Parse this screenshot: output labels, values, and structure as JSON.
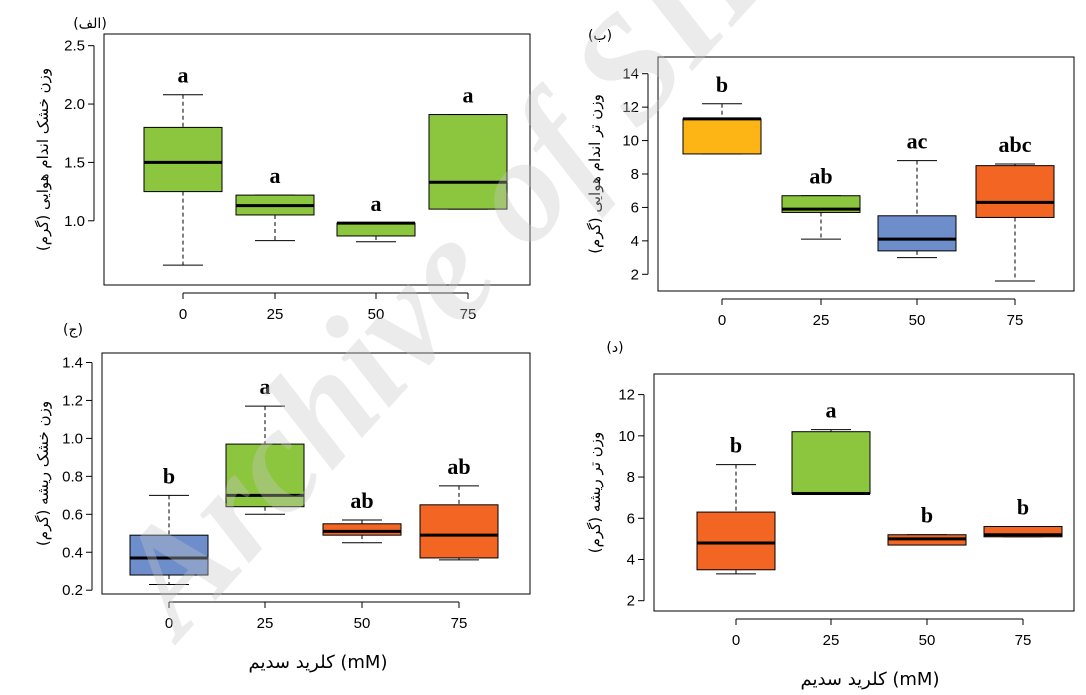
{
  "colors": {
    "green": "#8cc63f",
    "yellow": "#fdb515",
    "blue": "#6d8dcb",
    "orange": "#f26522"
  },
  "watermark": "Archive of SID",
  "chart_data": [
    {
      "type": "box",
      "panel_label": "(الف)",
      "ylabel": "وزن خشک اندام هوایی (گرم)",
      "categories": [
        "0",
        "25",
        "50",
        "75"
      ],
      "ylim": [
        0.45,
        2.6
      ],
      "yticks": [
        1.0,
        1.5,
        2.0,
        2.5
      ],
      "boxes": [
        {
          "min": 0.62,
          "q1": 1.25,
          "median": 1.5,
          "q3": 1.8,
          "max": 2.08,
          "letter": "a",
          "color": "green"
        },
        {
          "min": 0.83,
          "q1": 1.05,
          "median": 1.13,
          "q3": 1.22,
          "max": 1.22,
          "letter": "a",
          "color": "green"
        },
        {
          "min": 0.82,
          "q1": 0.87,
          "median": 0.98,
          "q3": 0.98,
          "max": 0.98,
          "letter": "a",
          "color": "green"
        },
        {
          "min": 1.1,
          "q1": 1.1,
          "median": 1.33,
          "q3": 1.91,
          "max": 1.91,
          "letter": "a",
          "color": "green"
        }
      ]
    },
    {
      "type": "box",
      "panel_label": "(ب)",
      "ylabel": "وزن تر اندام هوایی (گرم)",
      "categories": [
        "0",
        "25",
        "50",
        "75"
      ],
      "ylim": [
        1.0,
        15.0
      ],
      "yticks": [
        2,
        4,
        6,
        8,
        10,
        12,
        14
      ],
      "boxes": [
        {
          "min": 9.2,
          "q1": 9.2,
          "median": 11.3,
          "q3": 11.3,
          "max": 12.2,
          "letter": "b",
          "color": "yellow"
        },
        {
          "min": 4.1,
          "q1": 5.7,
          "median": 5.9,
          "q3": 6.7,
          "max": 6.7,
          "letter": "ab",
          "color": "green"
        },
        {
          "min": 3.0,
          "q1": 3.4,
          "median": 4.1,
          "q3": 5.5,
          "max": 8.8,
          "letter": "ac",
          "color": "blue"
        },
        {
          "min": 1.6,
          "q1": 5.4,
          "median": 6.3,
          "q3": 8.5,
          "max": 8.6,
          "letter": "abc",
          "color": "orange"
        }
      ]
    },
    {
      "type": "box",
      "panel_label": "(ج)",
      "ylabel": "وزن خشک ریشه (گرم)",
      "categories": [
        "0",
        "25",
        "50",
        "75"
      ],
      "ylim": [
        0.18,
        1.45
      ],
      "yticks": [
        0.2,
        0.4,
        0.6,
        0.8,
        1.0,
        1.2,
        1.4
      ],
      "boxes": [
        {
          "min": 0.23,
          "q1": 0.28,
          "median": 0.37,
          "q3": 0.49,
          "max": 0.7,
          "letter": "b",
          "color": "blue"
        },
        {
          "min": 0.6,
          "q1": 0.64,
          "median": 0.7,
          "q3": 0.97,
          "max": 1.17,
          "letter": "a",
          "color": "green"
        },
        {
          "min": 0.45,
          "q1": 0.49,
          "median": 0.51,
          "q3": 0.55,
          "max": 0.57,
          "letter": "ab",
          "color": "orange"
        },
        {
          "min": 0.36,
          "q1": 0.37,
          "median": 0.49,
          "q3": 0.65,
          "max": 0.75,
          "letter": "ab",
          "color": "orange"
        }
      ],
      "xlabel": "کلرید سدیم (mM)"
    },
    {
      "type": "box",
      "panel_label": "(د)",
      "ylabel": "وزن تر ریشه (گرم)",
      "categories": [
        "0",
        "25",
        "50",
        "75"
      ],
      "ylim": [
        1.5,
        13.0
      ],
      "yticks": [
        2,
        4,
        6,
        8,
        10,
        12
      ],
      "boxes": [
        {
          "min": 3.3,
          "q1": 3.5,
          "median": 4.8,
          "q3": 6.3,
          "max": 8.6,
          "letter": "b",
          "color": "orange"
        },
        {
          "min": 7.2,
          "q1": 7.2,
          "median": 7.2,
          "q3": 10.2,
          "max": 10.3,
          "letter": "a",
          "color": "green"
        },
        {
          "min": 4.7,
          "q1": 4.7,
          "median": 5.0,
          "q3": 5.2,
          "max": 5.2,
          "letter": "b",
          "color": "orange"
        },
        {
          "min": 5.1,
          "q1": 5.1,
          "median": 5.2,
          "q3": 5.6,
          "max": 5.6,
          "letter": "b",
          "color": "orange"
        }
      ],
      "xlabel": "کلرید سدیم (mM)"
    }
  ]
}
